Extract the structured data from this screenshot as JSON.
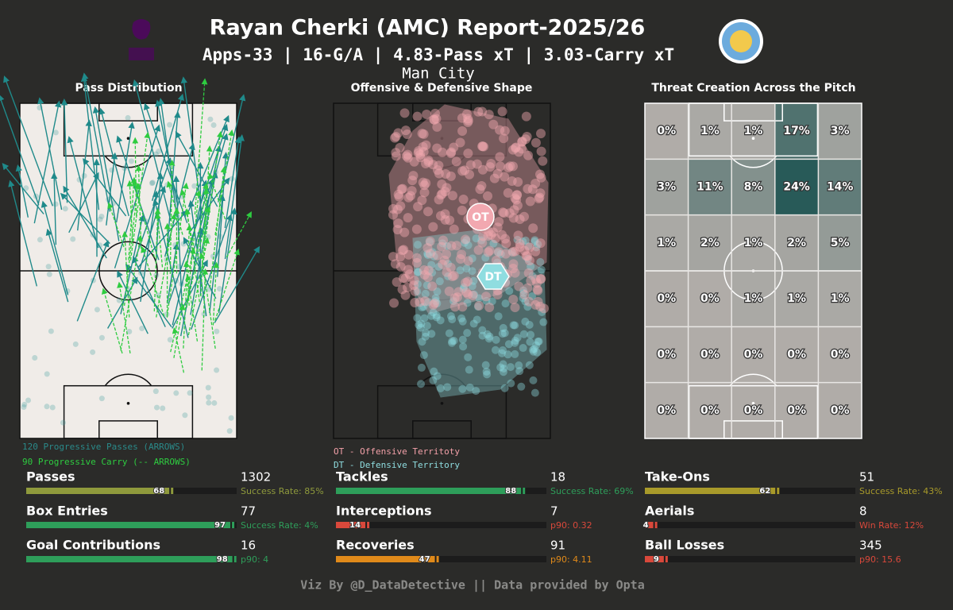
{
  "header": {
    "title": "Rayan Cherki (AMC) Report-2025/26",
    "subtitle": "Apps-33 | 16-G/A | 4.83-Pass xT | 3.03-Carry xT",
    "team": "Man City"
  },
  "panels": [
    "Pass Distribution",
    "Offensive & Defensive Shape",
    "Threat Creation Across the Pitch"
  ],
  "pass_legend": [
    "120 Progressive Passes (ARROWS)",
    "90 Progressive Carry (-- ARROWS)"
  ],
  "shape_labels": [
    "OT",
    "DT"
  ],
  "shape_legend": [
    "OT - Offensive Territoty",
    "DT - Defensive Territory"
  ],
  "heatmap": {
    "values": [
      [
        0,
        1,
        1,
        17,
        3
      ],
      [
        3,
        11,
        8,
        24,
        14
      ],
      [
        1,
        2,
        1,
        2,
        5
      ],
      [
        0,
        0,
        1,
        1,
        1
      ],
      [
        0,
        0,
        0,
        0,
        0
      ],
      [
        0,
        0,
        0,
        0,
        0
      ]
    ],
    "value_labels": [
      [
        "0%",
        "1%",
        "1%",
        "17%",
        "3%"
      ],
      [
        "3%",
        "11%",
        "8%",
        "24%",
        "14%"
      ],
      [
        "1%",
        "2%",
        "1%",
        "2%",
        "5%"
      ],
      [
        "0%",
        "0%",
        "1%",
        "1%",
        "1%"
      ],
      [
        "0%",
        "0%",
        "0%",
        "0%",
        "0%"
      ],
      [
        "0%",
        "0%",
        "0%",
        "0%",
        "0%"
      ]
    ]
  },
  "stats": [
    {
      "name": "Passes",
      "value": 1302,
      "percentile": 68,
      "note": "Success Rate: 85%",
      "color": "#8f9a3c"
    },
    {
      "name": "Box Entries",
      "value": 77,
      "percentile": 97,
      "note": "Success Rate: 4%",
      "color": "#2e9e5a"
    },
    {
      "name": "Goal Contributions",
      "value": 16,
      "percentile": 98,
      "note": "p90: 4",
      "color": "#2e9e5a"
    },
    {
      "name": "Tackles",
      "value": 18,
      "percentile": 88,
      "note": "Success Rate: 69%",
      "color": "#2e9e5a"
    },
    {
      "name": "Interceptions",
      "value": 7,
      "percentile": 14,
      "note": "p90: 0.32",
      "color": "#d9483b"
    },
    {
      "name": "Recoveries",
      "value": 91,
      "percentile": 47,
      "note": "p90: 4.11",
      "color": "#e08a1a"
    },
    {
      "name": "Take-Ons",
      "value": 51,
      "percentile": 62,
      "note": "Success Rate: 43%",
      "color": "#a89a2a"
    },
    {
      "name": "Aerials",
      "value": 8,
      "percentile": 4,
      "note": "Win Rate: 12%",
      "color": "#d9483b"
    },
    {
      "name": "Ball Losses",
      "value": 345,
      "percentile": 9,
      "note": "p90: 15.6",
      "color": "#d9483b"
    }
  ],
  "footer": "Viz By @D_DataDetective || Data provided by Opta"
}
